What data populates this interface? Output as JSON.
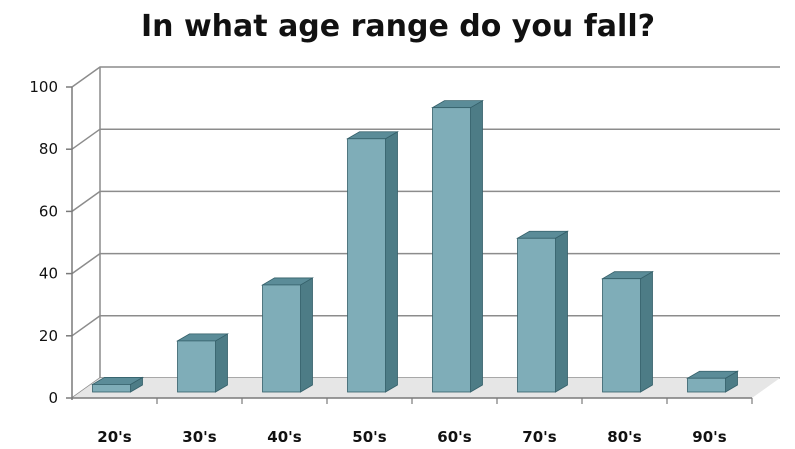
{
  "chart_data": {
    "type": "bar",
    "title": "In what age range do you fall?",
    "categories": [
      "20's",
      "30's",
      "40's",
      "50's",
      "60's",
      "70's",
      "80's",
      "90's"
    ],
    "values": [
      5,
      19,
      37,
      84,
      94,
      52,
      39,
      7
    ],
    "ylim": [
      0,
      100
    ],
    "yticks": [
      0,
      20,
      40,
      60,
      80,
      100
    ],
    "grid": true,
    "style": "3d",
    "colors": {
      "bar_front": "#7fadb8",
      "bar_top": "#5b8c98",
      "bar_side": "#4d7c86",
      "bar_edge": "#35606a",
      "gridline": "#8c8c8c",
      "floor": "#e6e6e6"
    }
  }
}
